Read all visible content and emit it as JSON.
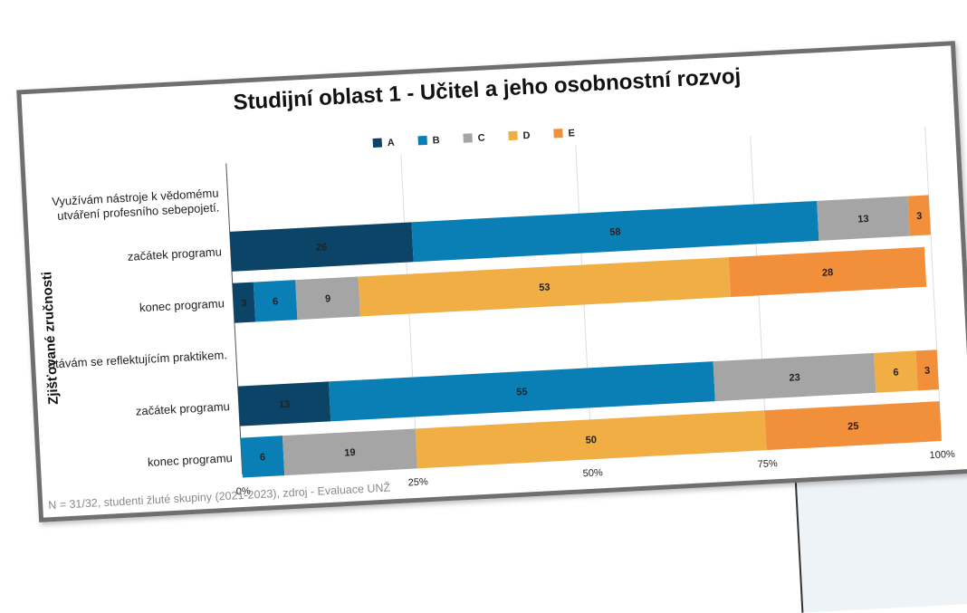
{
  "chart_data": {
    "type": "bar",
    "orientation": "horizontal",
    "stacked": true,
    "title": "Studijní oblast 1 - Učitel a jeho osobnostní rozvoj",
    "ylabel": "Zjišťované zručnosti",
    "xlabel": "",
    "xlim": [
      0,
      100
    ],
    "x_ticks": [
      "0%",
      "25%",
      "50%",
      "75%",
      "100%"
    ],
    "grid": true,
    "legend_position": "top",
    "categories": [
      "Využívám nástroje k vědomému utváření profesního sebepojetí.",
      "začátek programu",
      "konec programu",
      "Stávám se reflektujícím praktikem.",
      "začátek programu",
      "konec programu"
    ],
    "series": [
      {
        "name": "A",
        "color": "#0b4466",
        "values": [
          null,
          26,
          3,
          null,
          13,
          0
        ]
      },
      {
        "name": "B",
        "color": "#0a7fb5",
        "values": [
          null,
          58,
          6,
          null,
          55,
          6
        ]
      },
      {
        "name": "C",
        "color": "#a5a5a5",
        "values": [
          null,
          13,
          9,
          null,
          23,
          19
        ]
      },
      {
        "name": "D",
        "color": "#f0ae45",
        "values": [
          null,
          0,
          53,
          null,
          6,
          50
        ]
      },
      {
        "name": "E",
        "color": "#f28f3b",
        "values": [
          null,
          3,
          28,
          null,
          3,
          25
        ]
      }
    ]
  },
  "footnote": "N = 31/32, studenti žluté skupiny (2021-2023), zdroj - Evaluace UNŽ"
}
